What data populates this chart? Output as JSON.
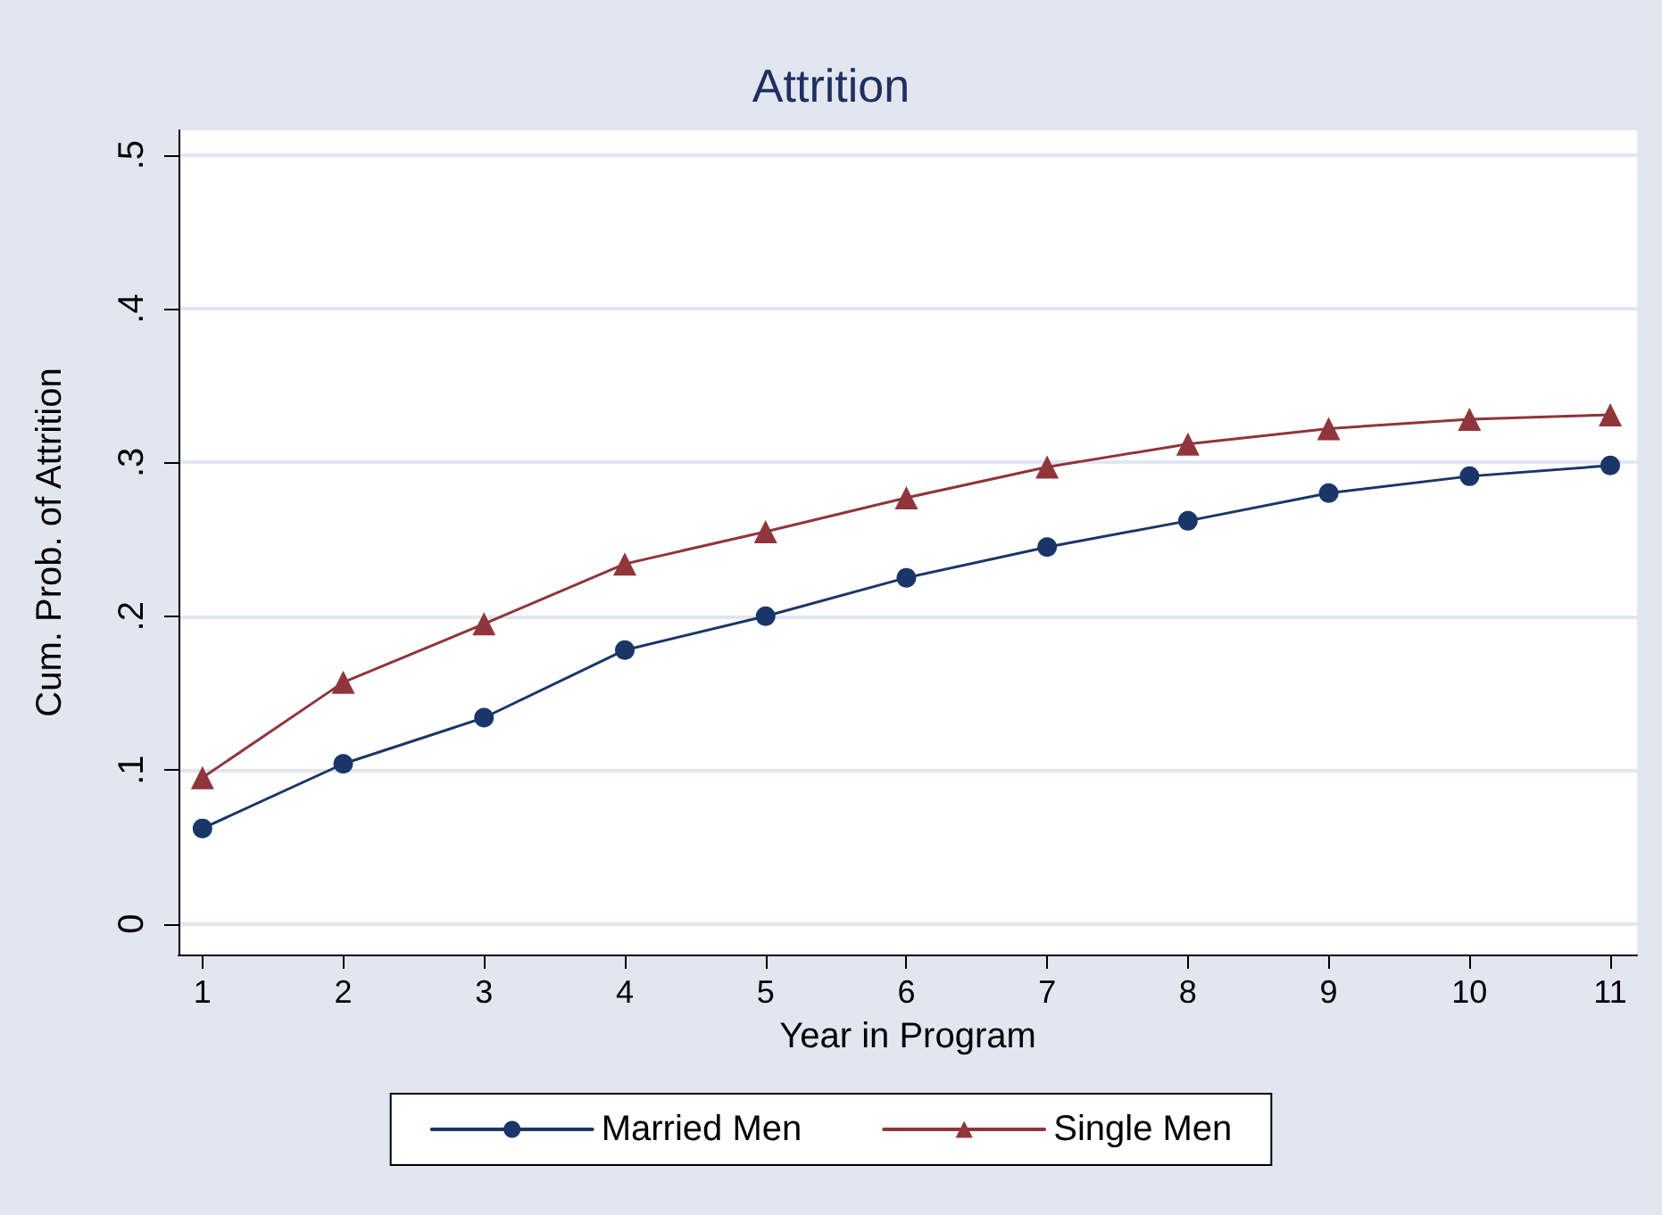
{
  "chart_data": {
    "type": "line",
    "title": "Attrition",
    "xlabel": "Year in Program",
    "ylabel": "Cum. Prob. of Attrition",
    "x": [
      1,
      2,
      3,
      4,
      5,
      6,
      7,
      8,
      9,
      10,
      11
    ],
    "series": [
      {
        "name": "Married Men",
        "color": "#1a3668",
        "marker": "circle",
        "values": [
          0.062,
          0.104,
          0.134,
          0.178,
          0.2,
          0.225,
          0.245,
          0.262,
          0.28,
          0.291,
          0.298
        ]
      },
      {
        "name": "Single Men",
        "color": "#90353b",
        "marker": "triangle",
        "values": [
          0.095,
          0.157,
          0.195,
          0.234,
          0.255,
          0.277,
          0.297,
          0.312,
          0.322,
          0.328,
          0.331
        ]
      }
    ],
    "xlim": [
      0.83,
      11.19
    ],
    "xticks": [
      1,
      2,
      3,
      4,
      5,
      6,
      7,
      8,
      9,
      10,
      11
    ],
    "ylim": [
      -0.02,
      0.516
    ],
    "yticks": [
      {
        "value": 0,
        "label": "0"
      },
      {
        "value": 0.1,
        "label": ".1"
      },
      {
        "value": 0.2,
        "label": ".2"
      },
      {
        "value": 0.3,
        "label": ".3"
      },
      {
        "value": 0.4,
        "label": ".4"
      },
      {
        "value": 0.5,
        "label": ".5"
      }
    ],
    "grid": "y",
    "legend": "bottom",
    "line_style": "solid"
  }
}
